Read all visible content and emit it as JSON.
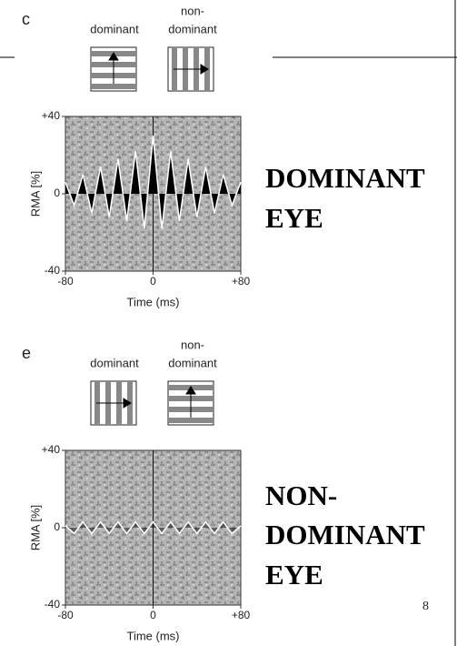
{
  "panels": [
    {
      "label": "c",
      "stimulus_labels": {
        "left": [
          "dominant"
        ],
        "right": [
          "non-",
          "dominant"
        ]
      },
      "chart": {
        "type": "line",
        "ylabel": "RMA [%]",
        "xlabel": "Time (ms)",
        "xlim": [
          -80,
          80
        ],
        "ylim": [
          -40,
          40
        ],
        "xticks": [
          -80,
          0,
          {
            "value": 80,
            "label": "+80"
          }
        ],
        "yticks": [
          {
            "value": 40,
            "label": "+40"
          },
          0,
          -40
        ],
        "x": [
          -80,
          -72,
          -64,
          -56,
          -48,
          -40,
          -32,
          -24,
          -16,
          -8,
          0,
          8,
          16,
          24,
          32,
          40,
          48,
          56,
          64,
          72,
          80
        ],
        "values": [
          6,
          -6,
          10,
          -10,
          14,
          -12,
          18,
          -14,
          22,
          -18,
          30,
          -18,
          22,
          -14,
          18,
          -12,
          14,
          -10,
          10,
          -6,
          6
        ]
      }
    },
    {
      "label": "e",
      "stimulus_labels": {
        "left": [
          "dominant"
        ],
        "right": [
          "non-",
          "dominant"
        ]
      },
      "chart": {
        "type": "line",
        "ylabel": "RMA [%]",
        "xlabel": "Time (ms)",
        "xlim": [
          -80,
          80
        ],
        "ylim": [
          -40,
          40
        ],
        "xticks": [
          -80,
          0,
          {
            "value": 80,
            "label": "+80"
          }
        ],
        "yticks": [
          {
            "value": 40,
            "label": "+40"
          },
          0,
          -40
        ],
        "x": [
          -80,
          -72,
          -64,
          -56,
          -48,
          -40,
          -32,
          -24,
          -16,
          -8,
          0,
          8,
          16,
          24,
          32,
          40,
          48,
          56,
          64,
          72,
          80
        ],
        "values": [
          1,
          -3,
          3,
          -3,
          3,
          -3,
          3,
          -3,
          3,
          -3,
          3,
          -3,
          3,
          -3,
          3,
          -3,
          3,
          -3,
          3,
          -3,
          1
        ]
      }
    }
  ],
  "captions": [
    [
      "DOMINANT",
      "EYE"
    ],
    [
      "NON-",
      "DOMINANT",
      "EYE"
    ]
  ],
  "page_number": 8
}
